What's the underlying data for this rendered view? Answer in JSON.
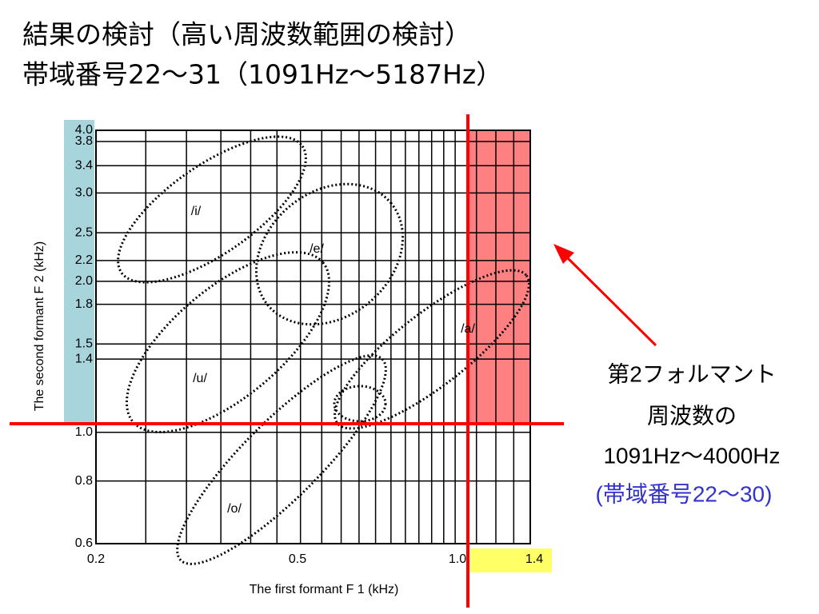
{
  "title": [
    "結果の検討（高い周波数範囲の検討）",
    "帯域番号22～31（1091Hz～5187Hz）"
  ],
  "chart": {
    "xlabel": "The first formant F 1 (kHz)",
    "ylabel": "The second formant F 2 (kHz)",
    "xticks": [
      "0.2",
      "0.5",
      "1.0",
      "1.4"
    ],
    "yticks": [
      "4.0",
      "3.8",
      "3.4",
      "3.0",
      "2.5",
      "2.2",
      "2.0",
      "1.8",
      "1.5",
      "1.4",
      "1.0",
      "0.8",
      "0.6"
    ],
    "vowels": [
      "/i/",
      "/e/",
      "/u/",
      "/a/",
      "/o/"
    ]
  },
  "annotation": [
    "第2フォルマント",
    "周波数の",
    "1091Hz～4000Hz",
    "(帯域番号22～30)"
  ]
}
